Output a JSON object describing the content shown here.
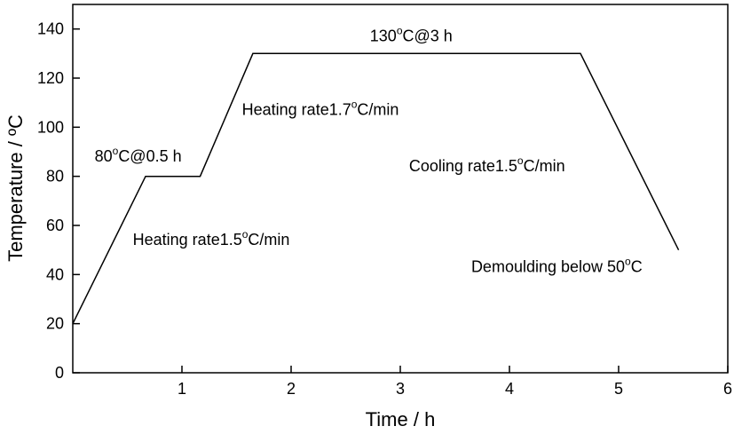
{
  "chart_data": {
    "type": "line",
    "xlabel": "Time / h",
    "ylabel": "Temperature / ºC",
    "xlim": [
      0,
      6
    ],
    "ylim": [
      0,
      150
    ],
    "x_ticks": [
      "1",
      "2",
      "3",
      "4",
      "5",
      "6"
    ],
    "y_ticks": [
      "0",
      "20",
      "40",
      "60",
      "80",
      "100",
      "120",
      "140"
    ],
    "x_tick_values": [
      1,
      2,
      3,
      4,
      5,
      6
    ],
    "y_tick_values": [
      0,
      20,
      40,
      60,
      80,
      100,
      120,
      140
    ],
    "grid": false,
    "series": [
      {
        "x": [
          0,
          0.667,
          1.167,
          1.65,
          4.65,
          5.55
        ],
        "y": [
          20,
          80,
          80,
          130,
          130,
          50
        ]
      }
    ],
    "annotations": [
      {
        "id": "hold-80",
        "base": "80",
        "sup": "o",
        "rest": "C@0.5 h",
        "x": 0.2,
        "y": 86,
        "anchor": "start"
      },
      {
        "id": "heating-1",
        "base": "Heating rate1.5",
        "sup": "o",
        "rest": "C/min",
        "x": 0.55,
        "y": 52,
        "anchor": "start"
      },
      {
        "id": "heating-2",
        "base": "Heating rate1.7",
        "sup": "o",
        "rest": "C/min",
        "x": 1.55,
        "y": 105,
        "anchor": "start"
      },
      {
        "id": "hold-130",
        "base": "130",
        "sup": "o",
        "rest": "C@3 h",
        "x": 3.1,
        "y": 135,
        "anchor": "middle"
      },
      {
        "id": "cooling",
        "base": "Cooling rate1.5",
        "sup": "o",
        "rest": "C/min",
        "x": 3.08,
        "y": 82,
        "anchor": "start"
      },
      {
        "id": "demoulding",
        "base": "Demoulding below 50",
        "sup": "o",
        "rest": "C",
        "x": 3.65,
        "y": 41,
        "anchor": "start"
      }
    ]
  }
}
